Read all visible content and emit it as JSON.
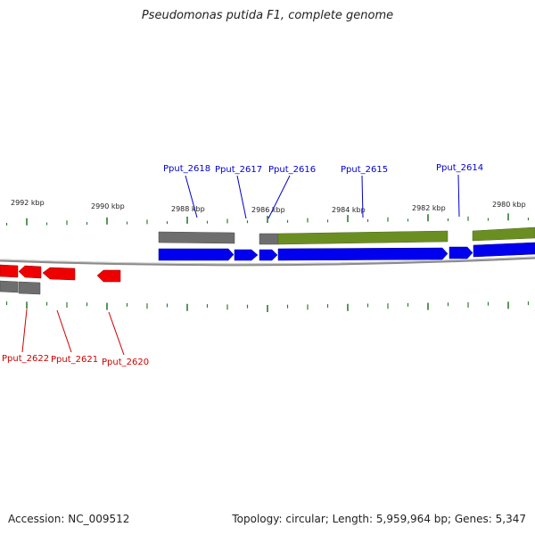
{
  "title": "Pseudomonas putida F1, complete genome",
  "accession_text": "Accession: NC_009512",
  "summary_text": "Topology: circular; Length: 5,959,964 bp; Genes: 5,347",
  "colors": {
    "backbone": "#888888",
    "forward_cds": "#0000ee",
    "reverse_cds": "#ee0000",
    "gray_feature": "#707070",
    "green_feature": "#6b8e23",
    "tick": "#2e7d32",
    "label_top": "#0000cc",
    "label_bot": "#cc0000"
  },
  "scale": {
    "unit": "kbp",
    "labels": [
      {
        "kbp": 2992,
        "text": "2992 kbp"
      },
      {
        "kbp": 2990,
        "text": "2990 kbp"
      },
      {
        "kbp": 2988,
        "text": "2988 kbp"
      },
      {
        "kbp": 2986,
        "text": "2986 kbp"
      },
      {
        "kbp": 2984,
        "text": "2984 kbp"
      },
      {
        "kbp": 2982,
        "text": "2982 kbp"
      },
      {
        "kbp": 2980,
        "text": "2980 kbp"
      }
    ]
  },
  "genes_forward": [
    {
      "name": "Pput_2618"
    },
    {
      "name": "Pput_2617"
    },
    {
      "name": "Pput_2616"
    },
    {
      "name": "Pput_2615"
    },
    {
      "name": "Pput_2614"
    }
  ],
  "genes_reverse": [
    {
      "name": "Pput_2622"
    },
    {
      "name": "Pput_2621"
    },
    {
      "name": "Pput_2620"
    }
  ]
}
